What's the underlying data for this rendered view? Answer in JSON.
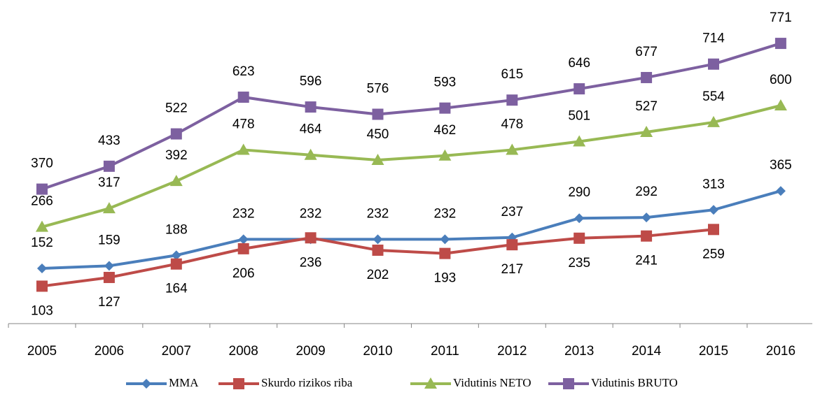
{
  "chart_data": {
    "type": "line",
    "categories": [
      "2005",
      "2006",
      "2007",
      "2008",
      "2009",
      "2010",
      "2011",
      "2012",
      "2013",
      "2014",
      "2015",
      "2016"
    ],
    "series": [
      {
        "name": "MMA",
        "color": "#4a7ebb",
        "marker": "diamond",
        "values": [
          152,
          159,
          188,
          232,
          232,
          232,
          232,
          237,
          290,
          292,
          313,
          365
        ]
      },
      {
        "name": "Skurdo rizikos riba",
        "color": "#be4b48",
        "marker": "square",
        "values": [
          103,
          127,
          164,
          206,
          236,
          202,
          193,
          217,
          235,
          241,
          259,
          null
        ]
      },
      {
        "name": "Vidutinis NETO",
        "color": "#98b954",
        "marker": "triangle",
        "values": [
          266,
          317,
          392,
          478,
          464,
          450,
          462,
          478,
          501,
          527,
          554,
          600
        ]
      },
      {
        "name": "Vidutinis BRUTO",
        "color": "#7d60a0",
        "marker": "square",
        "values": [
          370,
          433,
          522,
          623,
          596,
          576,
          593,
          615,
          646,
          677,
          714,
          771
        ]
      }
    ],
    "ylim": [
      0,
      900
    ],
    "legend": "bottom"
  }
}
